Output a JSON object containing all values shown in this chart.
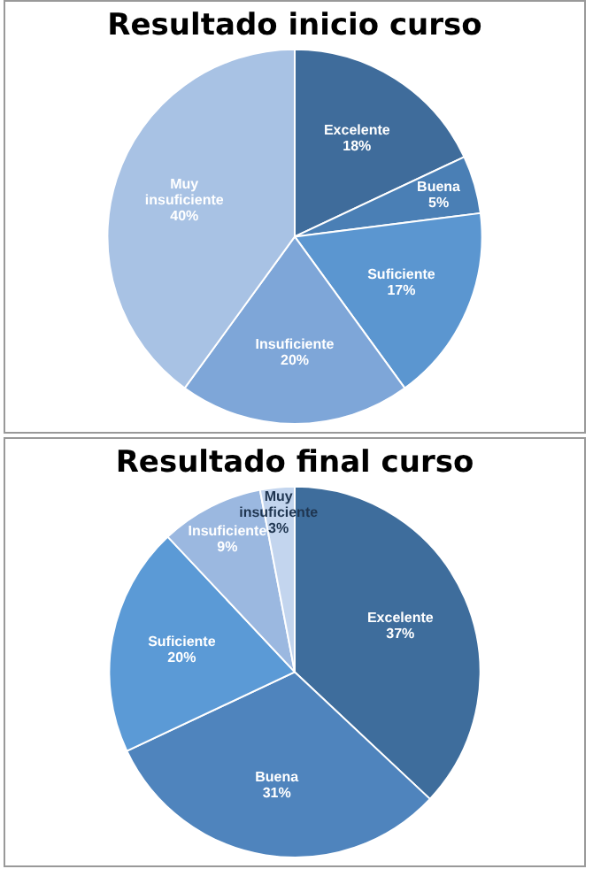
{
  "chart_data": [
    {
      "type": "pie",
      "title": "Resultado inicio curso",
      "categories": [
        "Excelente",
        "Buena",
        "Suficiente",
        "Insuficiente",
        "Muy insuficiente"
      ],
      "values": [
        18,
        5,
        17,
        20,
        40
      ],
      "value_labels": [
        "18%",
        "5%",
        "17%",
        "20%",
        "40%"
      ],
      "colors": [
        "#3f6c9b",
        "#4a7fb5",
        "#5b96d0",
        "#7ea6d8",
        "#a8c2e4"
      ],
      "legend": false
    },
    {
      "type": "pie",
      "title": "Resultado final curso",
      "categories": [
        "Excelente",
        "Buena",
        "Suficiente",
        "Insuficiente",
        "Muy insuficiente"
      ],
      "values": [
        37,
        31,
        20,
        9,
        3
      ],
      "value_labels": [
        "37%",
        "31%",
        "20%",
        "9%",
        "3%"
      ],
      "colors": [
        "#3e6d9c",
        "#4f84bd",
        "#5b9ad6",
        "#9bb8e0",
        "#c3d5ee"
      ],
      "legend": false
    }
  ]
}
